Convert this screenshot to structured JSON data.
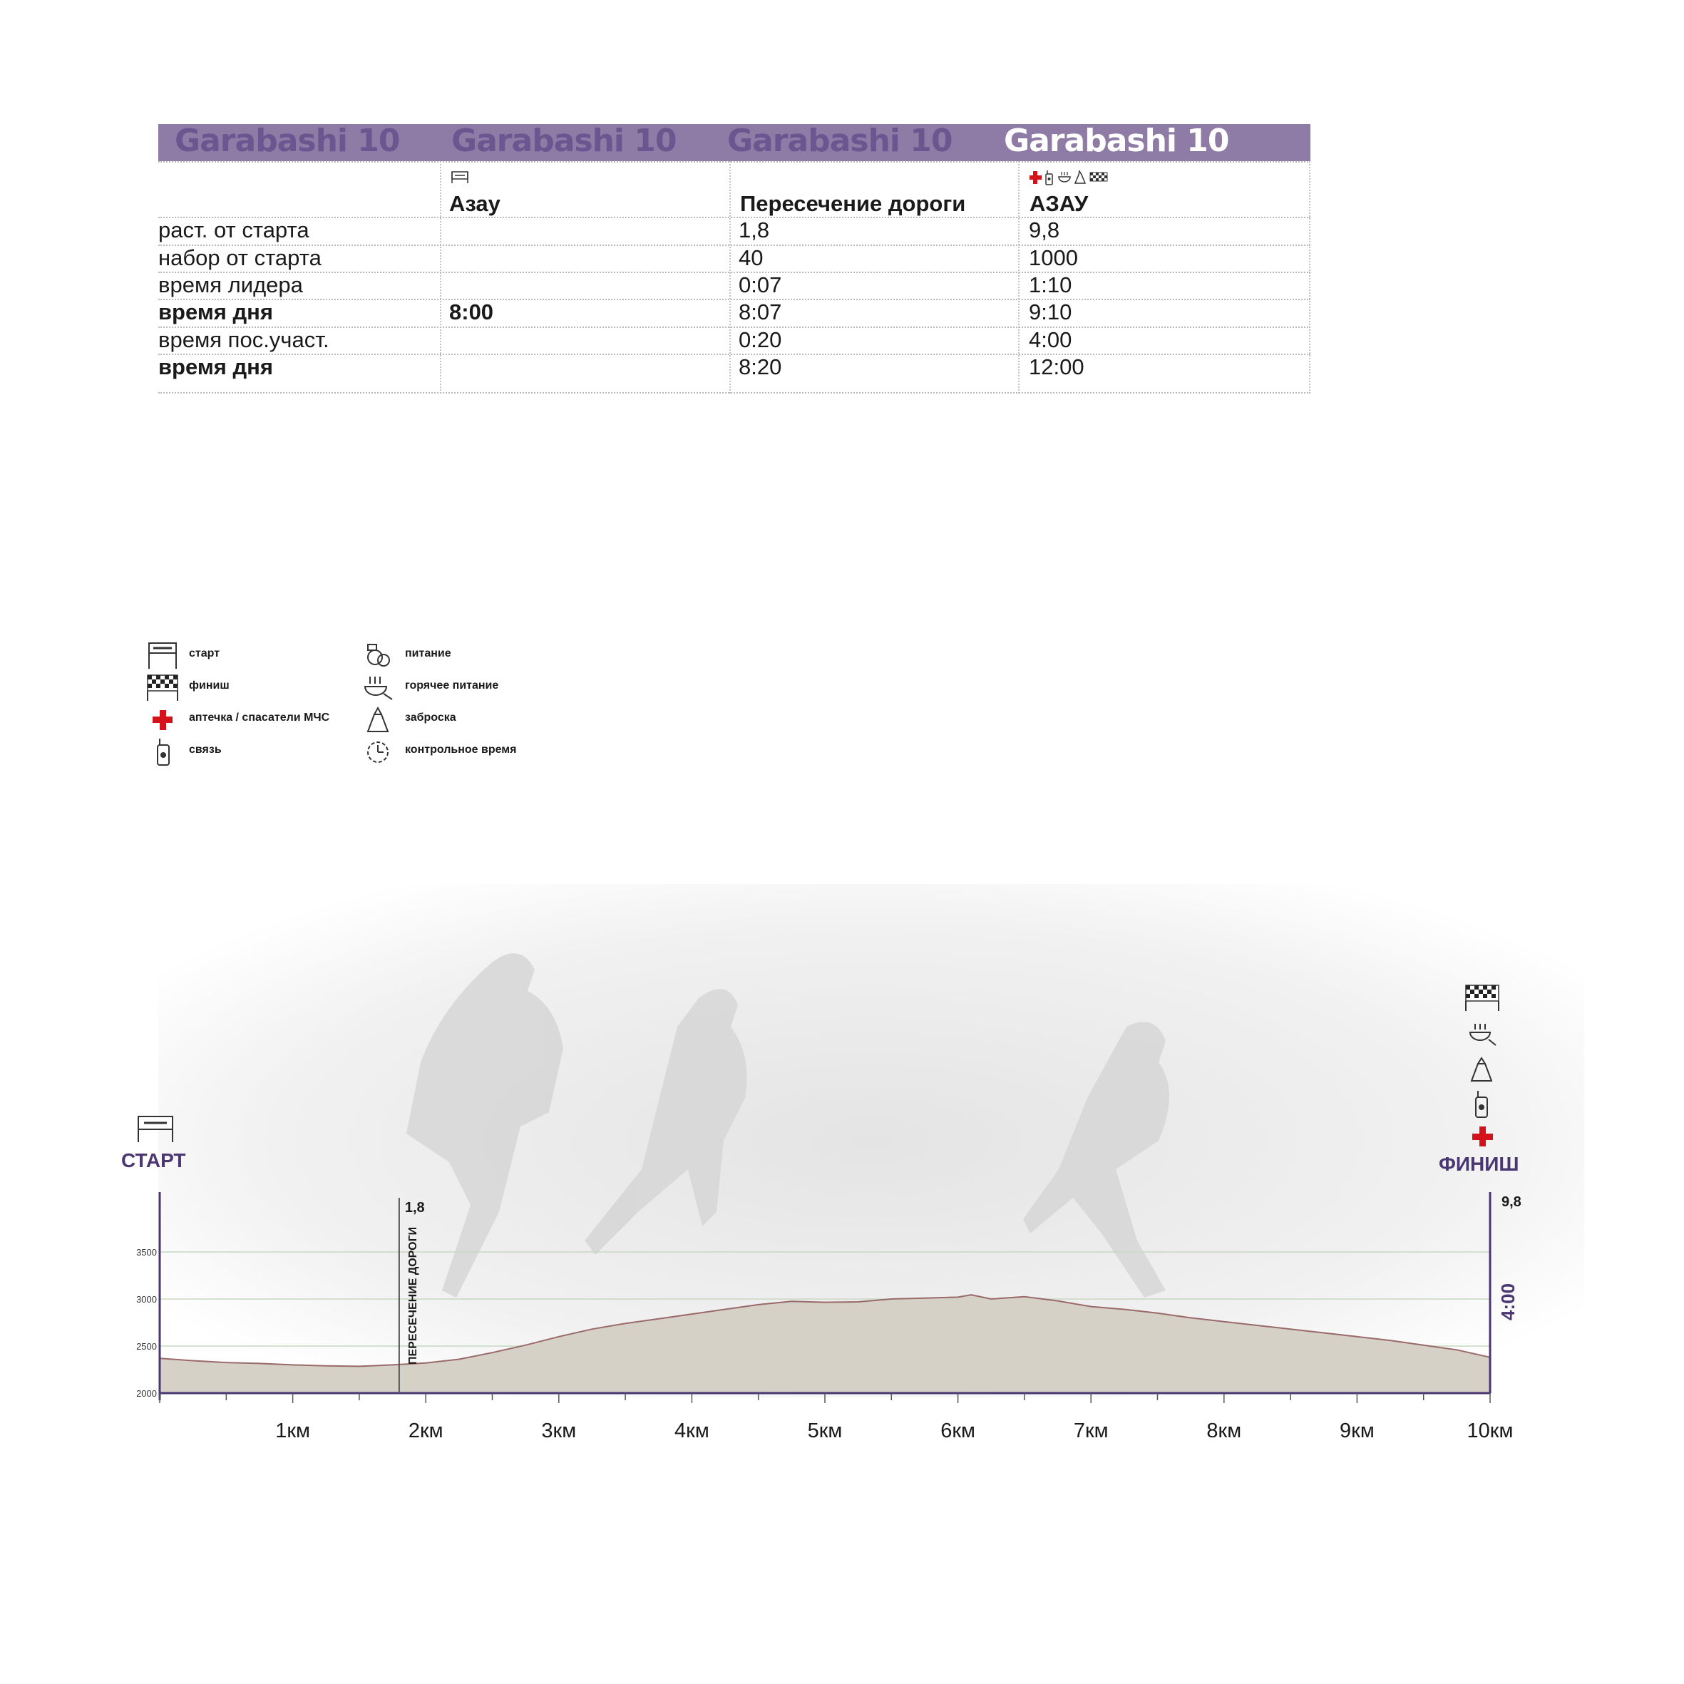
{
  "table": {
    "band_titles": [
      "Garabashi 10",
      "Garabashi 10",
      "Garabashi 10",
      "Garabashi 10"
    ],
    "columns": [
      {
        "location": "Азау",
        "icons": [
          "start-icon"
        ]
      },
      {
        "location": "Пересечение дороги",
        "icons": []
      },
      {
        "location": "АЗАУ",
        "icons": [
          "first-aid-icon",
          "radio-icon",
          "hot-food-icon",
          "drop-bag-icon",
          "finish-icon"
        ]
      }
    ],
    "rows": [
      {
        "label": "раст. от старта",
        "bold": false,
        "values": [
          "",
          "1,8",
          "9,8"
        ]
      },
      {
        "label": "набор от старта",
        "bold": false,
        "values": [
          "",
          "40",
          "1000"
        ]
      },
      {
        "label": "время лидера",
        "bold": false,
        "values": [
          "",
          "0:07",
          "1:10"
        ]
      },
      {
        "label": "время дня",
        "bold": true,
        "values": [
          "8:00",
          "8:07",
          "9:10"
        ]
      },
      {
        "label": "время пос.участ.",
        "bold": false,
        "values": [
          "",
          "0:20",
          "4:00"
        ]
      },
      {
        "label": "время дня",
        "bold": true,
        "values": [
          "",
          "8:20",
          "12:00"
        ]
      }
    ],
    "colors": {
      "band": "#8e7ca6",
      "band_text": "#6b5690",
      "active_text": "#ffffff"
    }
  },
  "legend": {
    "col1": [
      {
        "icon": "start-icon",
        "label": "старт"
      },
      {
        "icon": "finish-icon",
        "label": "финиш"
      },
      {
        "icon": "first-aid-icon",
        "label": "аптечка / спасатели МЧС"
      },
      {
        "icon": "radio-icon",
        "label": "связь"
      }
    ],
    "col2": [
      {
        "icon": "food-icon",
        "label": "питание"
      },
      {
        "icon": "hot-food-icon",
        "label": "горячее питание"
      },
      {
        "icon": "drop-bag-icon",
        "label": "заброска"
      },
      {
        "icon": "clock-icon",
        "label": "контрольное время"
      }
    ]
  },
  "chart_data": {
    "type": "area",
    "x_unit": "km",
    "y_unit": "m",
    "xlim": [
      0,
      10
    ],
    "ylim": [
      2000,
      3500
    ],
    "x_ticks": [
      1,
      2,
      3,
      4,
      5,
      6,
      7,
      8,
      9,
      10
    ],
    "x_tick_labels": [
      "1км",
      "2км",
      "3км",
      "4км",
      "5км",
      "6км",
      "7км",
      "8км",
      "9км",
      "10км"
    ],
    "y_ticks": [
      2000,
      2500,
      3000,
      3500
    ],
    "y_tick_labels": [
      "2000",
      "2500",
      "3000",
      "3500"
    ],
    "grid": true,
    "x": [
      0,
      0.25,
      0.5,
      0.75,
      1.0,
      1.25,
      1.5,
      1.75,
      2.0,
      2.25,
      2.5,
      2.75,
      3.0,
      3.25,
      3.5,
      3.75,
      4.0,
      4.25,
      4.5,
      4.75,
      5.0,
      5.25,
      5.5,
      5.75,
      6.0,
      6.1,
      6.25,
      6.5,
      6.75,
      7.0,
      7.25,
      7.5,
      7.75,
      8.0,
      8.25,
      8.5,
      8.75,
      9.0,
      9.25,
      9.5,
      9.75,
      10.0
    ],
    "y": [
      2370,
      2345,
      2325,
      2315,
      2300,
      2290,
      2285,
      2300,
      2320,
      2360,
      2430,
      2510,
      2600,
      2680,
      2740,
      2790,
      2840,
      2890,
      2940,
      2975,
      2965,
      2970,
      3000,
      3010,
      3020,
      3045,
      3000,
      3025,
      2980,
      2920,
      2890,
      2850,
      2800,
      2760,
      2720,
      2680,
      2640,
      2600,
      2560,
      2510,
      2460,
      2380
    ],
    "start": {
      "label": "СТАРТ",
      "icon": "start-icon"
    },
    "finish": {
      "label": "ФИНИШ",
      "distance": "9,8",
      "control_time": "4:00",
      "icons": [
        "finish-icon",
        "hot-food-icon",
        "drop-bag-icon",
        "radio-icon",
        "first-aid-icon"
      ]
    },
    "checkpoints": [
      {
        "x": 1.8,
        "distance": "1,8",
        "label": "ПЕРЕСЕЧЕНИЕ ДОРОГИ"
      }
    ],
    "colors": {
      "fill": "#d6d1c6",
      "stroke": "#9a6a6a",
      "axis": "#4a3672",
      "grid": "#c6d9bf",
      "label": "#4a3672"
    }
  }
}
